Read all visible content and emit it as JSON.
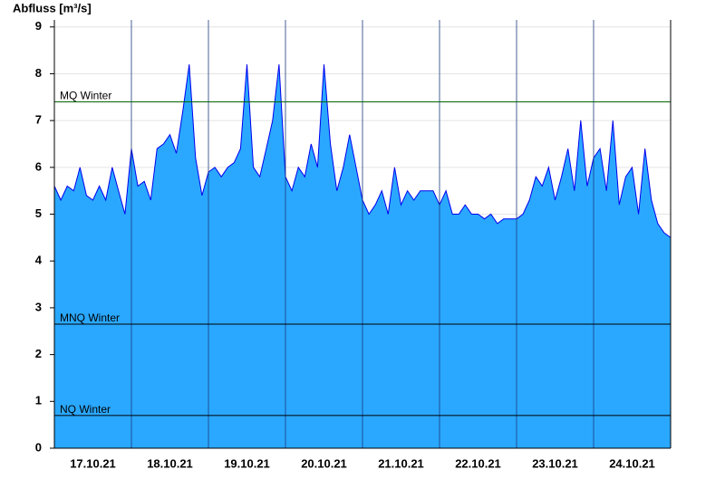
{
  "chart_data": {
    "type": "area",
    "y_label": "Abfluss [m³/s]",
    "ylim": [
      0,
      9.15
    ],
    "yticks": [
      0,
      1,
      2,
      3,
      4,
      5,
      6,
      7,
      8,
      9
    ],
    "grid": true,
    "xlim": [
      0,
      8
    ],
    "xticks": [
      {
        "value": 0.5,
        "label": "17.10.21"
      },
      {
        "value": 1.5,
        "label": "18.10.21"
      },
      {
        "value": 2.5,
        "label": "19.10.21"
      },
      {
        "value": 3.5,
        "label": "20.10.21"
      },
      {
        "value": 4.5,
        "label": "21.10.21"
      },
      {
        "value": 5.5,
        "label": "22.10.21"
      },
      {
        "value": 6.5,
        "label": "23.10.21"
      },
      {
        "value": 7.5,
        "label": "24.10.21"
      }
    ],
    "fill_color": "#2aa8ff",
    "line_color": "#0000ee",
    "x": [
      0,
      0.083,
      0.167,
      0.25,
      0.333,
      0.417,
      0.5,
      0.583,
      0.667,
      0.75,
      0.833,
      0.917,
      1,
      1.083,
      1.167,
      1.25,
      1.333,
      1.417,
      1.5,
      1.583,
      1.667,
      1.75,
      1.833,
      1.917,
      2,
      2.083,
      2.167,
      2.25,
      2.333,
      2.417,
      2.5,
      2.583,
      2.667,
      2.75,
      2.833,
      2.917,
      3,
      3.083,
      3.167,
      3.25,
      3.333,
      3.417,
      3.5,
      3.583,
      3.667,
      3.75,
      3.833,
      3.917,
      4,
      4.083,
      4.167,
      4.25,
      4.333,
      4.417,
      4.5,
      4.583,
      4.667,
      4.75,
      4.833,
      4.917,
      5,
      5.083,
      5.167,
      5.25,
      5.333,
      5.417,
      5.5,
      5.583,
      5.667,
      5.75,
      5.833,
      5.917,
      6,
      6.083,
      6.167,
      6.25,
      6.333,
      6.417,
      6.5,
      6.583,
      6.667,
      6.75,
      6.833,
      6.917,
      7,
      7.083,
      7.167,
      7.25,
      7.333,
      7.417,
      7.5,
      7.583,
      7.667,
      7.75,
      7.833,
      7.917,
      8
    ],
    "values": [
      5.6,
      5.3,
      5.6,
      5.5,
      6.0,
      5.4,
      5.3,
      5.6,
      5.3,
      6.0,
      5.5,
      5.0,
      6.4,
      5.6,
      5.7,
      5.3,
      6.4,
      6.5,
      6.7,
      6.3,
      7.2,
      8.2,
      6.2,
      5.4,
      5.9,
      6.0,
      5.8,
      6.0,
      6.1,
      6.4,
      8.2,
      6.0,
      5.8,
      6.4,
      7.0,
      8.2,
      5.8,
      5.5,
      6.0,
      5.8,
      6.5,
      6.0,
      8.2,
      6.5,
      5.5,
      6.0,
      6.7,
      6.0,
      5.3,
      5.0,
      5.2,
      5.5,
      5.0,
      6.0,
      5.2,
      5.5,
      5.3,
      5.5,
      5.5,
      5.5,
      5.2,
      5.5,
      5.0,
      5.0,
      5.2,
      5.0,
      5.0,
      4.9,
      5.0,
      4.8,
      4.9,
      4.9,
      4.9,
      5.0,
      5.3,
      5.8,
      5.6,
      6.0,
      5.3,
      5.8,
      6.4,
      5.5,
      7.0,
      5.6,
      6.2,
      6.4,
      5.5,
      7.0,
      5.2,
      5.8,
      6.0,
      5.0,
      6.4,
      5.3,
      4.8,
      4.6,
      4.5
    ],
    "reference_lines": [
      {
        "label": "MQ Winter",
        "value": 7.4,
        "color": "#006600"
      },
      {
        "label": "MNQ Winter",
        "value": 2.65,
        "color": "#000000"
      },
      {
        "label": "NQ Winter",
        "value": 0.7,
        "color": "#000000"
      }
    ]
  }
}
